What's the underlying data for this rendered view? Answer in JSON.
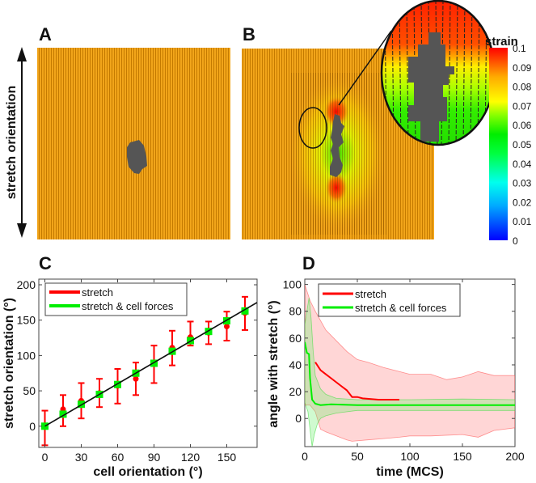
{
  "panels": {
    "a": "A",
    "b": "B",
    "c": "C",
    "d": "D"
  },
  "stretch_arrow_label": "stretch orientation",
  "colorbar": {
    "title": "strain",
    "ticks": [
      "0",
      "0.01",
      "0.02",
      "0.03",
      "0.04",
      "0.05",
      "0.06",
      "0.07",
      "0.08",
      "0.09",
      "0.1"
    ],
    "colors": [
      "#0000ff",
      "#00aaff",
      "#00ffee",
      "#00ff40",
      "#00ee00",
      "#88ff00",
      "#ffff00",
      "#ffaa00",
      "#ff0000"
    ]
  },
  "colors": {
    "stretch": "#ff0000",
    "cell_forces": "#00ee00",
    "mesh": "#f0a018",
    "mesh_stripe": "#c47a00",
    "cell": "#555555"
  },
  "chart_data": [
    {
      "type": "scatter",
      "title": "C",
      "xlabel": "cell orientation (°)",
      "ylabel": "stretch orientation (°)",
      "xlim": [
        -5,
        175
      ],
      "ylim": [
        -30,
        208
      ],
      "xticks": [
        "0",
        "30",
        "60",
        "90",
        "120",
        "150"
      ],
      "yticks": [
        "0",
        "50",
        "100",
        "150",
        "200"
      ],
      "legend": {
        "placement": "top-left",
        "entries": [
          "stretch",
          "stretch & cell forces"
        ]
      },
      "x": [
        0,
        15,
        30,
        45,
        60,
        75,
        90,
        105,
        120,
        135,
        150,
        165
      ],
      "series": [
        {
          "name": "stretch",
          "values": [
            0,
            24,
            36,
            47,
            57,
            67,
            88,
            111,
            126,
            132,
            141,
            160
          ],
          "err_low": [
            -27,
            0,
            11,
            27,
            32,
            44,
            61,
            86,
            114,
            116,
            121,
            136
          ],
          "err_high": [
            22,
            44,
            61,
            67,
            81,
            90,
            114,
            135,
            148,
            148,
            162,
            183
          ]
        },
        {
          "name": "stretch & cell forces",
          "values": [
            0,
            17,
            31,
            45,
            59,
            75,
            89,
            106,
            121,
            134,
            149,
            163
          ]
        }
      ],
      "fit_line": {
        "x": [
          0,
          175
        ],
        "y": [
          0,
          175
        ]
      }
    },
    {
      "type": "line",
      "title": "D",
      "xlabel": "time (MCS)",
      "ylabel": "angle with stretch (°)",
      "xlim": [
        0,
        200
      ],
      "ylim": [
        -21,
        104
      ],
      "xticks": [
        "0",
        "50",
        "100",
        "150",
        "200"
      ],
      "yticks": [
        "0",
        "20",
        "40",
        "60",
        "80",
        "100"
      ],
      "legend": {
        "placement": "top-left",
        "entries": [
          "stretch",
          "stretch & cell forces"
        ]
      },
      "series": [
        {
          "name": "stretch",
          "mean": {
            "t": [
              10,
              15,
              20,
              25,
              30,
              35,
              40,
              45,
              50,
              55,
              70,
              90
            ],
            "v": [
              42,
              36,
              33,
              30,
              27,
              24,
              21,
              16,
              16,
              15,
              14,
              14
            ]
          },
          "upper": {
            "t": [
              0,
              5,
              10,
              20,
              30,
              40,
              50,
              60,
              75,
              90,
              100,
              120,
              135,
              150,
              165,
              180,
              200
            ],
            "v": [
              100,
              88,
              80,
              66,
              58,
              50,
              44,
              42,
              38,
              35,
              33,
              33,
              29,
              31,
              35,
              32,
              32
            ]
          },
          "lower": {
            "t": [
              0,
              5,
              10,
              15,
              20,
              30,
              40,
              45,
              60,
              75,
              90,
              100,
              120,
              150,
              165,
              180,
              200
            ],
            "v": [
              10,
              10,
              5,
              -8,
              -10,
              -13,
              -16,
              -17,
              -16,
              -15,
              -14,
              -13,
              -13,
              -12,
              -14,
              -9,
              -7
            ]
          }
        },
        {
          "name": "stretch & cell forces",
          "mean": {
            "t": [
              0,
              2,
              4,
              5,
              7,
              10,
              15,
              25,
              50,
              100,
              150,
              200
            ],
            "v": [
              57,
              49,
              48,
              30,
              14,
              11,
              10,
              10.5,
              10,
              10,
              10,
              10
            ]
          },
          "upper": {
            "t": [
              0,
              4,
              6,
              8,
              10,
              15,
              20,
              30,
              50,
              100,
              150,
              200
            ],
            "v": [
              70,
              90,
              75,
              50,
              32,
              22,
              18,
              15,
              14,
              14,
              14.5,
              14
            ]
          },
          "lower": {
            "t": [
              0,
              3,
              6,
              7,
              9,
              12,
              15,
              20,
              30,
              50,
              100,
              150,
              200
            ],
            "v": [
              12,
              5,
              -15,
              -21,
              -12,
              -4,
              0,
              2,
              4,
              6,
              6,
              6,
              6
            ]
          }
        }
      ]
    }
  ]
}
